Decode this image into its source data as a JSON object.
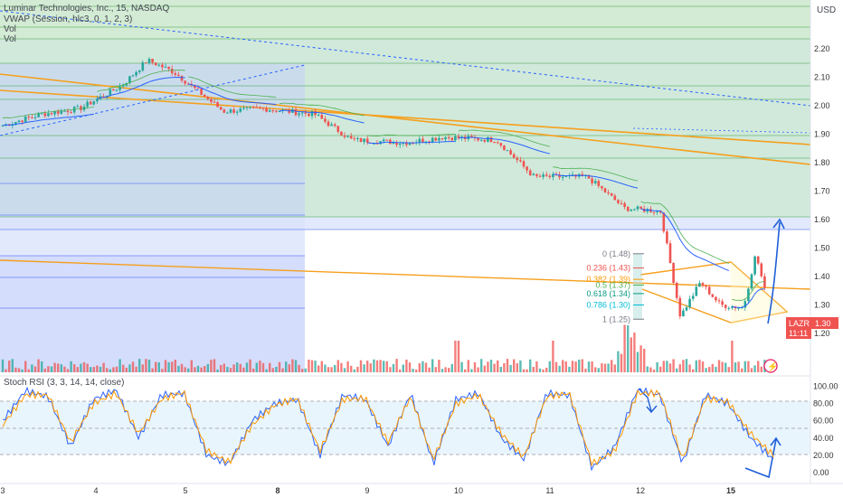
{
  "header": {
    "title": "Luminar Technologies, Inc., 15, NASDAQ",
    "vwap": "VWAP (Session, hlc3, 0, 1, 2, 3)",
    "vol1": "Vol",
    "vol2": "Vol",
    "currency": "USD"
  },
  "rsi": {
    "title": "Stoch RSI (3, 3, 14, 14, close)"
  },
  "colors": {
    "up": "#26a69a",
    "down": "#ef5350",
    "k": "#2962ff",
    "d": "#ff9800",
    "zone_green": "#a5d6a7",
    "zone_blue": "#b3c6f5",
    "trend": "#f59f1d",
    "arrow": "#1e5fd8",
    "badge": "#ef5350"
  },
  "price_badge": {
    "symbol": "LAZR",
    "price": "1.30",
    "timer": "11:11"
  },
  "fib": [
    {
      "label": "0 (1.48)",
      "price": 1.48,
      "color": "#787b86"
    },
    {
      "label": "0.236 (1.43)",
      "price": 1.43,
      "color": "#ef5350"
    },
    {
      "label": "0.382 (1.39)",
      "price": 1.39,
      "color": "#ff9800"
    },
    {
      "label": "0.5 (1.37)",
      "price": 1.37,
      "color": "#4caf50"
    },
    {
      "label": "0.618 (1.34)",
      "price": 1.34,
      "color": "#089981"
    },
    {
      "label": "0.786 (1.30)",
      "price": 1.3,
      "color": "#00bcd4"
    },
    {
      "label": "1 (1.25)",
      "price": 1.25,
      "color": "#787b86"
    }
  ],
  "chart_data": [
    {
      "type": "candlestick",
      "title": "Luminar Technologies, Inc., 15, NASDAQ",
      "ylabel": "USD",
      "ylim": [
        1.15,
        2.3
      ],
      "yticks": [
        "2.20",
        "2.10",
        "2.00",
        "1.90",
        "1.80",
        "1.70",
        "1.60",
        "1.50",
        "1.40",
        "1.30",
        "1.20"
      ],
      "x_labels": [
        "3",
        "4",
        "5",
        "8",
        "9",
        "10",
        "11",
        "12",
        "15"
      ],
      "close_path": [
        {
          "day": "3",
          "price": 1.97
        },
        {
          "day": "3",
          "price": 1.99
        },
        {
          "day": "4",
          "price": 2.07
        },
        {
          "day": "4",
          "price": 2.16
        },
        {
          "day": "4",
          "price": 2.12
        },
        {
          "day": "5",
          "price": 1.98
        },
        {
          "day": "5",
          "price": 1.99
        },
        {
          "day": "8",
          "price": 1.97
        },
        {
          "day": "8",
          "price": 1.88
        },
        {
          "day": "9",
          "price": 1.87
        },
        {
          "day": "9",
          "price": 1.89
        },
        {
          "day": "10",
          "price": 1.88
        },
        {
          "day": "10",
          "price": 1.75
        },
        {
          "day": "11",
          "price": 1.75
        },
        {
          "day": "11",
          "price": 1.64
        },
        {
          "day": "12",
          "price": 1.63
        },
        {
          "day": "12",
          "price": 1.26
        },
        {
          "day": "12",
          "price": 1.38
        },
        {
          "day": "12",
          "price": 1.3
        },
        {
          "day": "15",
          "price": 1.29
        },
        {
          "day": "15",
          "price": 1.48
        },
        {
          "day": "15",
          "price": 1.3
        }
      ]
    },
    {
      "type": "line",
      "title": "Stoch RSI (3, 3, 14, 14, close)",
      "ylim": [
        -5,
        105
      ],
      "yticks": [
        "100.00",
        "80.00",
        "60.00",
        "40.00",
        "20.00",
        "0.00"
      ],
      "series": [
        {
          "values": [
            60,
            95,
            88,
            30,
            85,
            96,
            40,
            90,
            92,
            20,
            10,
            60,
            80,
            85,
            20,
            90,
            85,
            30,
            92,
            10,
            85,
            92,
            40,
            15,
            92,
            90,
            5,
            30,
            96,
            90,
            10,
            90,
            80,
            40,
            15
          ]
        },
        {
          "values": [
            55,
            90,
            90,
            35,
            80,
            92,
            45,
            85,
            93,
            25,
            12,
            55,
            78,
            86,
            25,
            85,
            86,
            35,
            88,
            15,
            80,
            90,
            45,
            18,
            88,
            92,
            10,
            25,
            92,
            92,
            15,
            86,
            82,
            45,
            20
          ]
        }
      ]
    }
  ]
}
